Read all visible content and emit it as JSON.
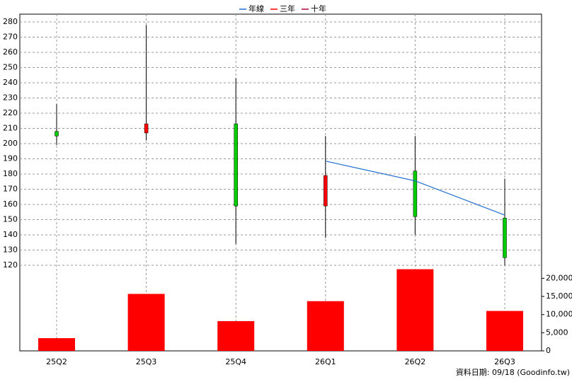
{
  "chart_data": {
    "type": "candlestick",
    "categories": [
      "25Q2",
      "25Q3",
      "25Q4",
      "26Q1",
      "26Q2",
      "26Q3"
    ],
    "open": [
      208,
      207,
      213,
      159,
      182,
      151
    ],
    "high": [
      226,
      278,
      243,
      205,
      205,
      177
    ],
    "low": [
      199,
      202,
      134,
      138,
      140,
      120
    ],
    "close": [
      205,
      213,
      159,
      179,
      152,
      125
    ],
    "up_color": "#ff0000",
    "down_color": "#00cc00",
    "series": [
      {
        "name": "年線",
        "color": "#1e6fd0",
        "values": [
          null,
          null,
          null,
          188.5,
          175.5,
          153
        ]
      },
      {
        "name": "三年",
        "color": "#ff0000",
        "values": [
          null,
          null,
          null,
          null,
          null,
          null
        ]
      },
      {
        "name": "十年",
        "color": "#b00040",
        "values": [
          null,
          null,
          null,
          null,
          null,
          null
        ]
      }
    ],
    "ylim": [
      115,
      285
    ],
    "yticks": [
      120,
      130,
      140,
      150,
      160,
      170,
      180,
      190,
      200,
      210,
      220,
      230,
      240,
      250,
      260,
      270,
      280
    ],
    "grid": true,
    "volume": {
      "color": "#ff0000",
      "values": [
        3500,
        15700,
        8200,
        13700,
        22500,
        11000
      ],
      "ylim": [
        0,
        23000
      ],
      "yticks": [
        0,
        {
          "value": 5000,
          "label": "5,000"
        },
        {
          "value": 10000,
          "label": "10,000"
        },
        {
          "value": 15000,
          "label": "15,000"
        },
        {
          "value": 20000,
          "label": "20,000"
        }
      ]
    },
    "source": "資料日期: 09/18  (Goodinfo.tw)"
  }
}
